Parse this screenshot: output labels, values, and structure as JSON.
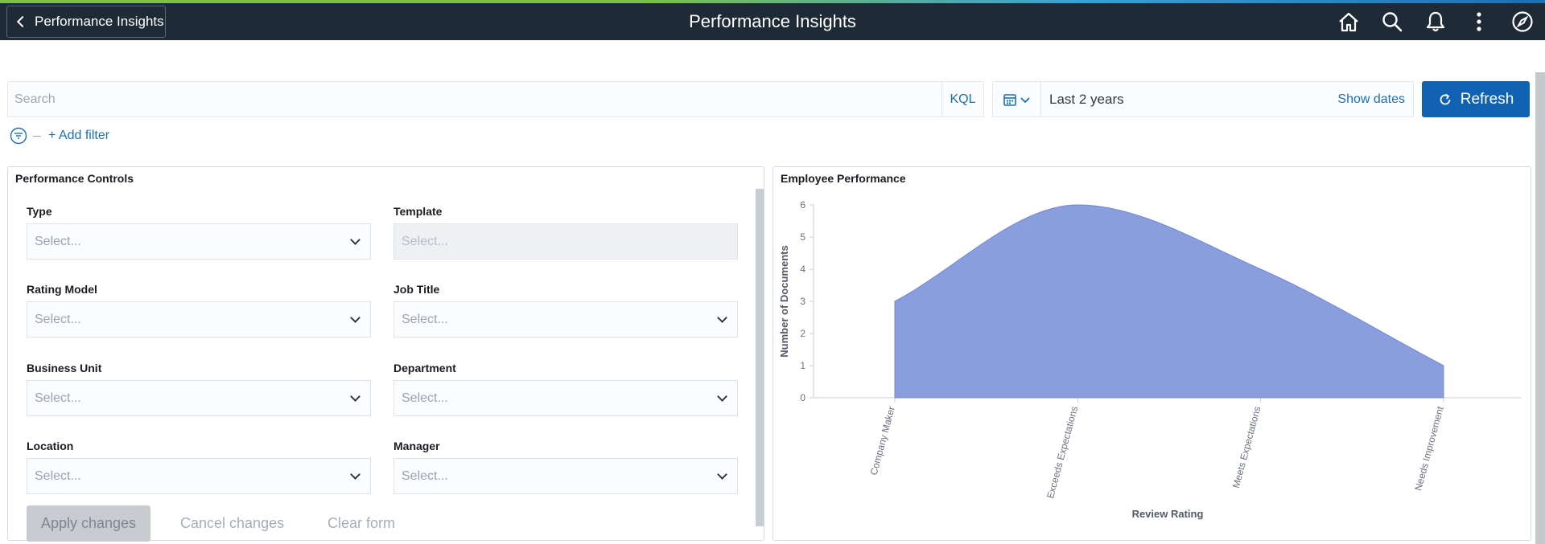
{
  "header": {
    "back_label": "Performance Insights",
    "title": "Performance Insights",
    "icons": [
      "home-icon",
      "search-icon",
      "bell-icon",
      "more-vertical-icon",
      "compass-icon"
    ]
  },
  "query_bar": {
    "search_placeholder": "Search",
    "kql_label": "KQL",
    "date_range": "Last 2 years",
    "show_dates": "Show dates",
    "refresh_label": "Refresh",
    "add_filter": "+ Add filter"
  },
  "controls": {
    "title": "Performance Controls",
    "fields": [
      {
        "label": "Type",
        "placeholder": "Select...",
        "disabled": false
      },
      {
        "label": "Template",
        "placeholder": "Select...",
        "disabled": true
      },
      {
        "label": "Rating Model",
        "placeholder": "Select...",
        "disabled": false
      },
      {
        "label": "Job Title",
        "placeholder": "Select...",
        "disabled": false
      },
      {
        "label": "Business Unit",
        "placeholder": "Select...",
        "disabled": false
      },
      {
        "label": "Department",
        "placeholder": "Select...",
        "disabled": false
      },
      {
        "label": "Location",
        "placeholder": "Select...",
        "disabled": false
      },
      {
        "label": "Manager",
        "placeholder": "Select...",
        "disabled": false
      }
    ],
    "apply_label": "Apply changes",
    "cancel_label": "Cancel changes",
    "clear_label": "Clear form"
  },
  "chart_panel": {
    "title": "Employee Performance"
  },
  "chart_data": {
    "type": "area",
    "categories": [
      "Company Maker",
      "Exceeds Expectations",
      "Meets Expectations",
      "Needs Improvement"
    ],
    "values": [
      3,
      6,
      4,
      1
    ],
    "xlabel": "Review Rating",
    "ylabel": "Number of Documents",
    "ylim": [
      0,
      6
    ],
    "yticks": [
      0,
      1,
      2,
      3,
      4,
      5,
      6
    ],
    "color": "#8a9ede",
    "grid": false
  },
  "colors": {
    "header_bg": "#1e2a36",
    "accent": "#1262b3",
    "link": "#1b6fb3"
  }
}
